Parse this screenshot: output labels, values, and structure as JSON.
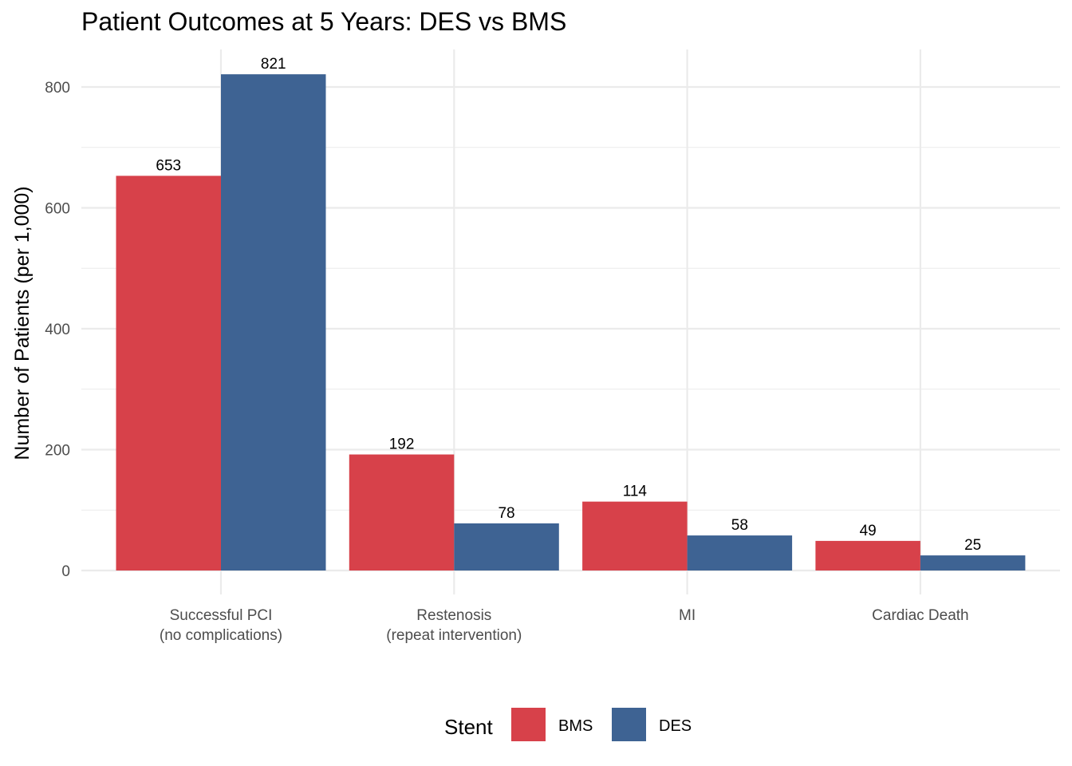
{
  "chart_data": {
    "type": "bar",
    "title": "Patient Outcomes at 5 Years: DES vs BMS",
    "xlabel": "",
    "ylabel": "Number of Patients (per 1,000)",
    "ylim": [
      0,
      860
    ],
    "yticks": [
      0,
      200,
      400,
      600,
      800
    ],
    "yticks_minor": [
      100,
      300,
      500,
      700
    ],
    "ytick_labels": [
      "0",
      "200",
      "400",
      "600",
      "800"
    ],
    "grid": true,
    "categories": [
      [
        "Successful PCI",
        "(no complications)"
      ],
      [
        "Restenosis",
        "(repeat intervention)"
      ],
      [
        "MI"
      ],
      [
        "Cardiac Death"
      ]
    ],
    "series": [
      {
        "name": "BMS",
        "color": "#d7414a",
        "values": [
          653,
          192,
          114,
          49
        ]
      },
      {
        "name": "DES",
        "color": "#3e6393",
        "values": [
          821,
          78,
          58,
          25
        ]
      }
    ],
    "data_labels": true,
    "legend": {
      "title": "Stent",
      "position": "bottom",
      "entries": [
        "BMS",
        "DES"
      ]
    }
  }
}
